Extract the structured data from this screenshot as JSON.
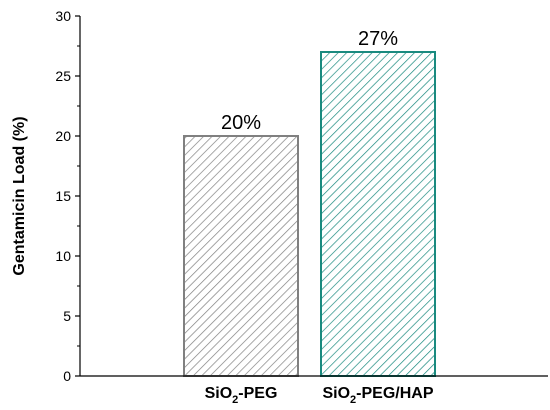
{
  "chart_data": {
    "type": "bar",
    "categories": [
      "SiO2-PEG",
      "SiO2-PEG/HAP"
    ],
    "category_labels": [
      {
        "main": "SiO",
        "sub": "2",
        "rest": "-PEG"
      },
      {
        "main": "SiO",
        "sub": "2",
        "rest": "-PEG/HAP"
      }
    ],
    "values": [
      20,
      27
    ],
    "data_labels": [
      "20%",
      "27%"
    ],
    "ylabel": "Gentamicin Load (%)",
    "xlabel": "",
    "ylim": [
      0,
      30
    ],
    "yticks": [
      0,
      5,
      10,
      15,
      20,
      25,
      30
    ],
    "bar_colors": [
      "#808080",
      "#1a8a7f"
    ],
    "hatch": "diagonal",
    "grid": false,
    "legend": "none"
  }
}
